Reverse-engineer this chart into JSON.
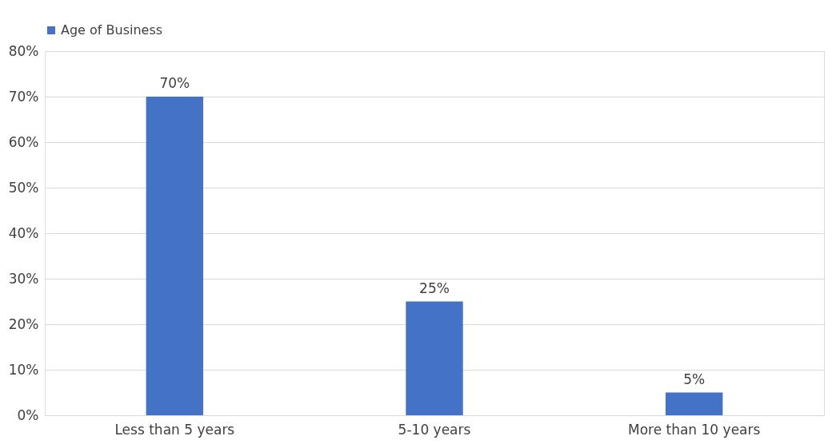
{
  "chart_data": {
    "type": "bar",
    "categories": [
      "Less than 5 years",
      "5-10 years",
      "More than 10 years"
    ],
    "series": [
      {
        "name": "Age of Business",
        "color": "#4472c4",
        "values": [
          70,
          25,
          5
        ],
        "value_labels": [
          "70%",
          "25%",
          "5%"
        ]
      }
    ],
    "ylim": [
      0,
      80
    ],
    "yticks": [
      {
        "value": 0,
        "label": "0%"
      },
      {
        "value": 10,
        "label": "10%"
      },
      {
        "value": 20,
        "label": "20%"
      },
      {
        "value": 30,
        "label": "30%"
      },
      {
        "value": 40,
        "label": "40%"
      },
      {
        "value": 50,
        "label": "50%"
      },
      {
        "value": 60,
        "label": "60%"
      },
      {
        "value": 70,
        "label": "70%"
      },
      {
        "value": 80,
        "label": "80%"
      }
    ],
    "grid": "y",
    "legend": "top"
  }
}
